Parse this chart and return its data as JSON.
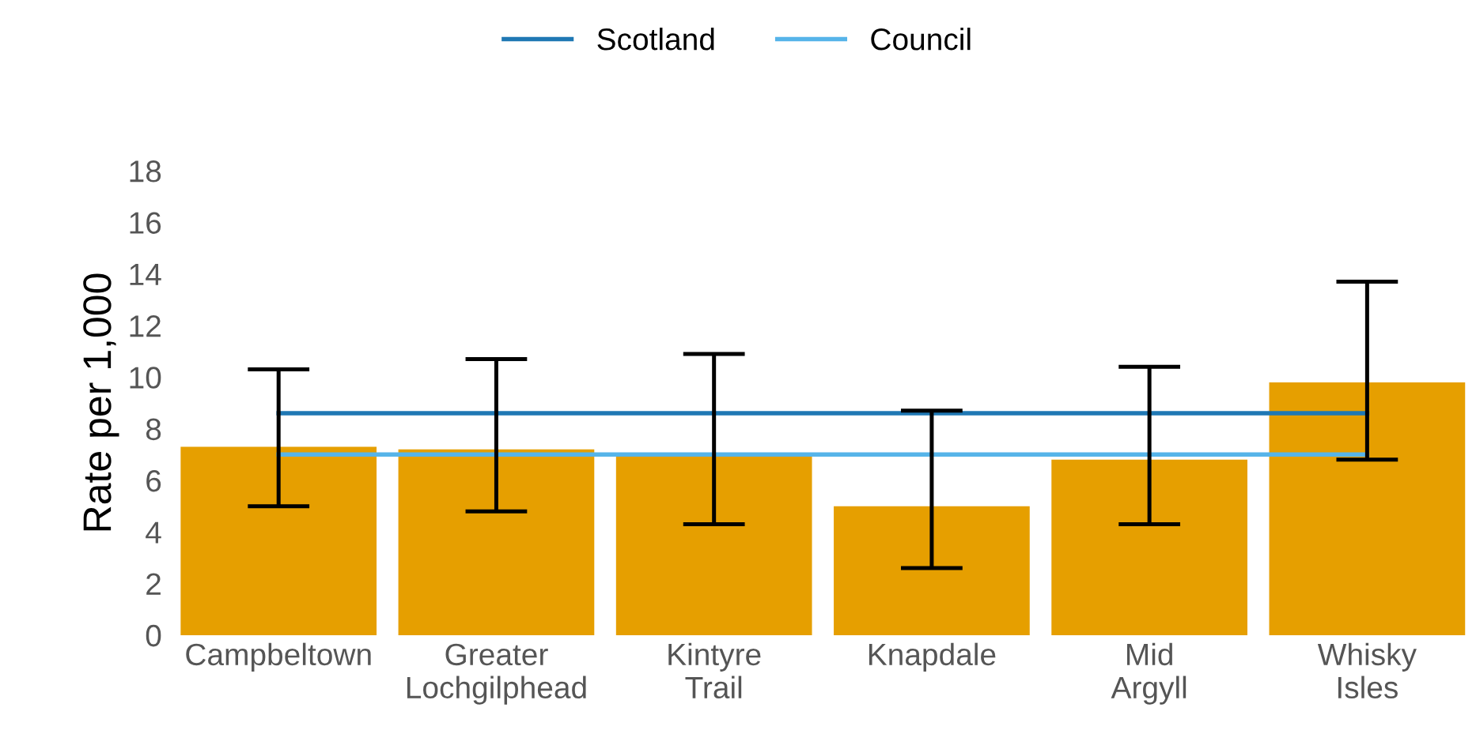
{
  "chart_data": {
    "type": "bar",
    "ylabel": "Rate per 1,000",
    "categories": [
      "Campbeltown",
      "Greater Lochgilphead",
      "Kintyre Trail",
      "Knapdale",
      "Mid Argyll",
      "Whisky Isles"
    ],
    "series": [
      {
        "color": "#e69f00",
        "values": [
          7.3,
          7.2,
          7.0,
          5.0,
          6.8,
          9.8
        ],
        "errors": [
          [
            5.0,
            10.3
          ],
          [
            4.8,
            10.7
          ],
          [
            4.3,
            10.9
          ],
          [
            2.6,
            8.7
          ],
          [
            4.3,
            10.4
          ],
          [
            6.8,
            13.7
          ]
        ]
      },
      {
        "type": "line",
        "name": "Scotland",
        "color": "#1f78b4",
        "values": [
          8.6,
          8.6,
          8.6,
          8.6,
          8.6,
          8.6
        ]
      },
      {
        "type": "line",
        "name": "Council",
        "color": "#56b4e9",
        "values": [
          7.0,
          7.0,
          7.0,
          7.0,
          7.0,
          7.0
        ]
      }
    ],
    "ylim": [
      0,
      18
    ],
    "yticks": [
      0,
      2,
      4,
      6,
      8,
      10,
      12,
      14,
      16,
      18
    ],
    "grid": false,
    "legend": "top"
  }
}
